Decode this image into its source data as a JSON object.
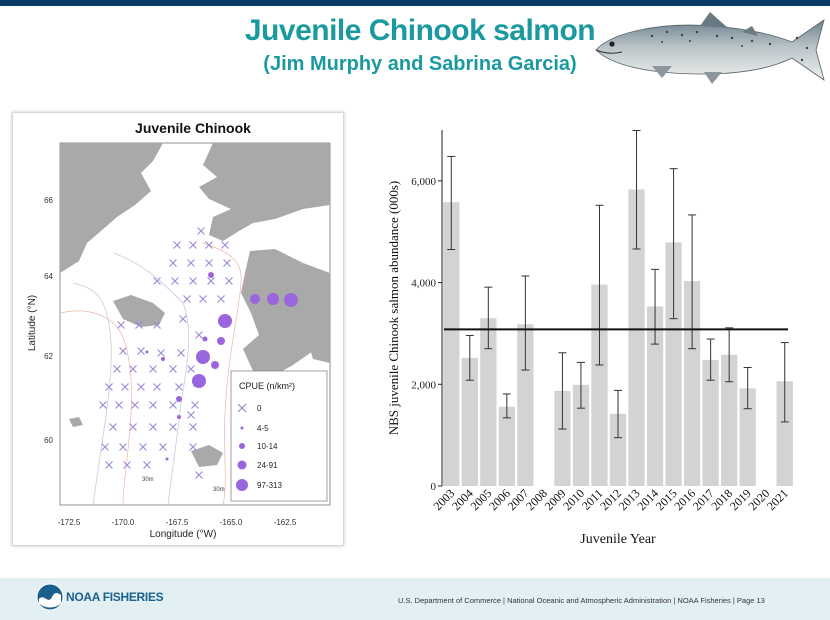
{
  "slide": {
    "title": "Juvenile Chinook salmon",
    "subtitle": "(Jim Murphy and Sabrina Garcia)",
    "footer": {
      "logo_text": "NOAA FISHERIES",
      "text": "U.S. Department of Commerce  |  National Oceanic and Atmospheric Administration  |  NOAA Fisheries  |  Page 13"
    },
    "colors": {
      "title": "#1a9aa0",
      "bars": "#d3d3d3",
      "points": "#9966dd"
    }
  },
  "map": {
    "title": "Juvenile Chinook",
    "xlabel": "Longitude (°W)",
    "ylabel": "Latitude (°N)",
    "xticks": [
      "-172.5",
      "-170.0",
      "-167.5",
      "-165.0",
      "-162.5"
    ],
    "yticks": [
      "66",
      "64",
      "62",
      "60"
    ],
    "depth_labels": [
      "30m",
      "30m"
    ],
    "legend": {
      "title": "CPUE (n/km²)",
      "items": [
        "0",
        "4-5",
        "10-14",
        "24-91",
        "97-313"
      ]
    }
  },
  "chart_data": {
    "type": "bar",
    "categories": [
      "2003",
      "2004",
      "2005",
      "2006",
      "2007",
      "2008",
      "2009",
      "2010",
      "2011",
      "2012",
      "2013",
      "2014",
      "2015",
      "2016",
      "2017",
      "2018",
      "2019",
      "2020",
      "2021"
    ],
    "values": [
      5580,
      2520,
      3300,
      1560,
      3180,
      null,
      1870,
      1990,
      3960,
      1420,
      5830,
      3530,
      4790,
      4030,
      2480,
      2580,
      1920,
      null,
      2060
    ],
    "error_low": [
      4650,
      2080,
      2700,
      1340,
      2280,
      null,
      1120,
      1530,
      2380,
      950,
      4660,
      2790,
      3290,
      2700,
      2080,
      2050,
      1520,
      null,
      1260
    ],
    "error_high": [
      6480,
      2960,
      3910,
      1810,
      4130,
      null,
      2620,
      2430,
      5520,
      1880,
      6990,
      4260,
      6240,
      5330,
      2890,
      3110,
      2330,
      null,
      2820
    ],
    "mean_line": 3080,
    "ylabel": "NBS juvenile Chinook salmon abundance (000s)",
    "xlabel": "Juvenile Year",
    "ylim": [
      0,
      7000
    ],
    "yticks": [
      "0",
      "2,000",
      "4,000",
      "6,000"
    ]
  }
}
